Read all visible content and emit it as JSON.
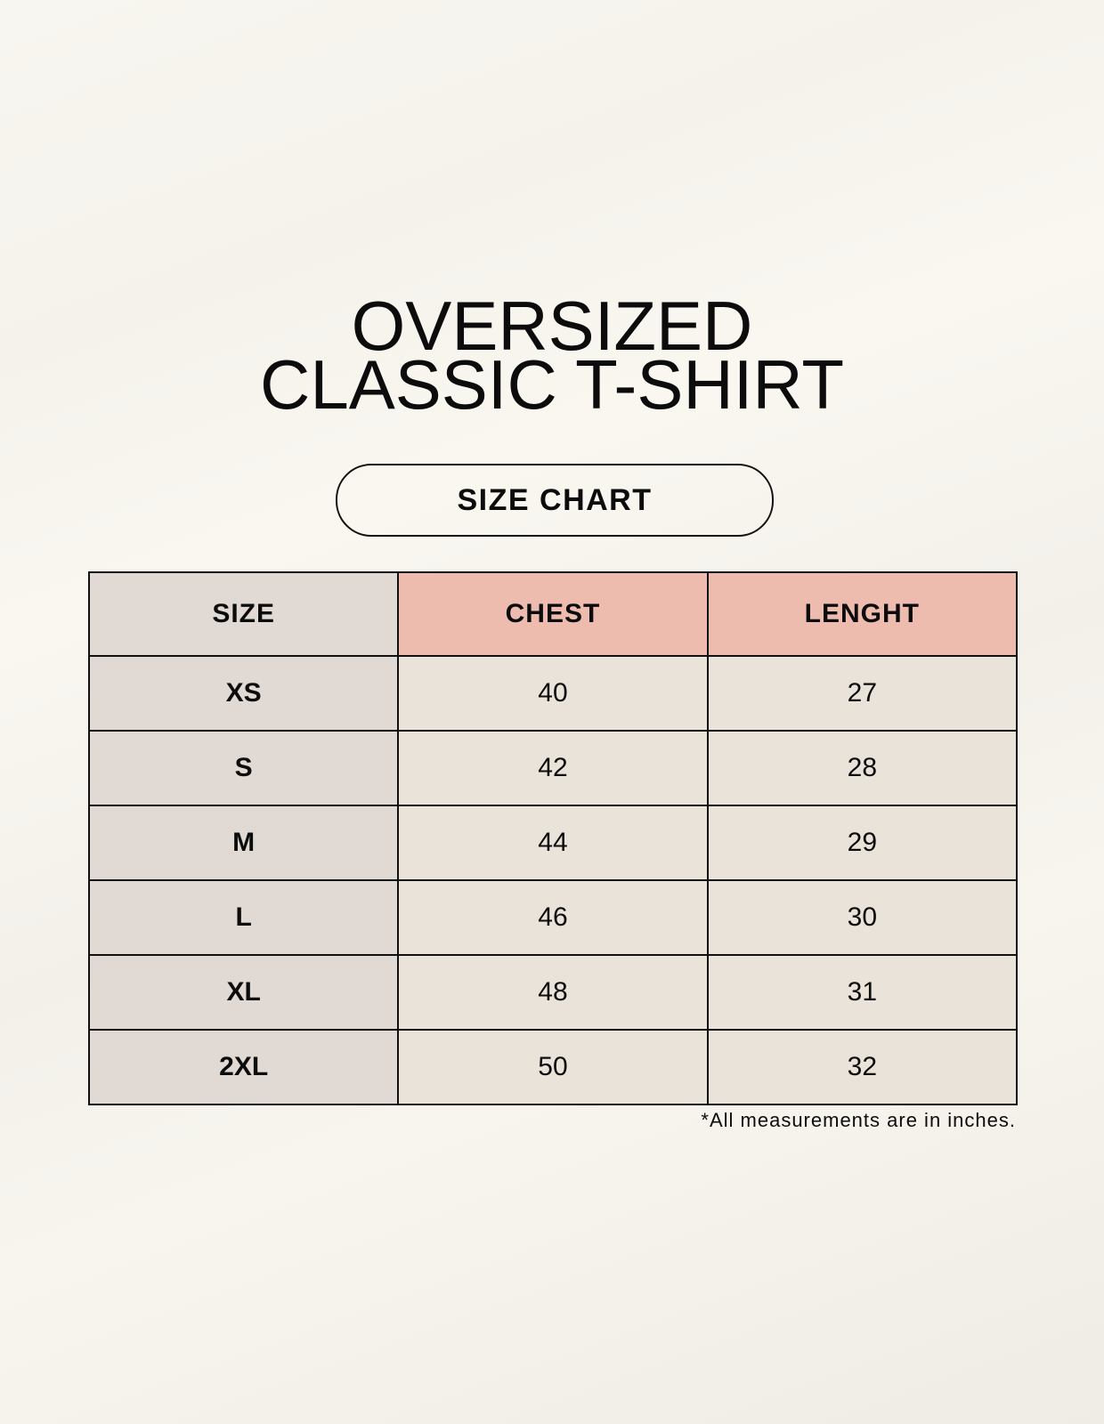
{
  "title": {
    "line1": "OVERSIZED",
    "line2": "CLASSIC T-SHIRT"
  },
  "subtitle": "SIZE CHART",
  "table": {
    "headers": [
      "SIZE",
      "CHEST",
      "LENGHT"
    ],
    "rows": [
      [
        "XS",
        "40",
        "27"
      ],
      [
        "S",
        "42",
        "28"
      ],
      [
        "M",
        "44",
        "29"
      ],
      [
        "L",
        "46",
        "30"
      ],
      [
        "XL",
        "48",
        "31"
      ],
      [
        "2XL",
        "50",
        "32"
      ]
    ]
  },
  "footnote": "*All measurements are in inches.",
  "colors": {
    "size_column": "#e0d9d4",
    "header_accent": "#edbcaf",
    "value_cells": "#eae3da",
    "background": "#f8f5ef"
  }
}
